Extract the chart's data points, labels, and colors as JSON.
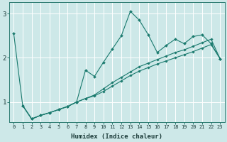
{
  "xlabel": "Humidex (Indice chaleur)",
  "background_color": "#cde8e8",
  "grid_color": "#ffffff",
  "line_color": "#1a7a6e",
  "xlim": [
    -0.5,
    23.5
  ],
  "ylim": [
    0.55,
    3.25
  ],
  "yticks": [
    1,
    2,
    3
  ],
  "xticks": [
    0,
    1,
    2,
    3,
    4,
    5,
    6,
    7,
    8,
    9,
    10,
    11,
    12,
    13,
    14,
    15,
    16,
    17,
    18,
    19,
    20,
    21,
    22,
    23
  ],
  "series": [
    {
      "x": [
        0,
        1,
        2,
        3,
        4,
        5,
        6,
        7,
        8,
        9,
        10,
        11,
        12,
        13,
        14,
        15,
        16,
        17,
        18,
        19,
        20,
        21,
        22,
        23
      ],
      "y": [
        2.55,
        0.92,
        0.62,
        0.7,
        0.76,
        0.83,
        0.9,
        1.0,
        1.72,
        1.58,
        1.9,
        2.2,
        2.5,
        3.05,
        2.85,
        2.52,
        2.12,
        2.28,
        2.42,
        2.32,
        2.48,
        2.52,
        2.32,
        1.98
      ]
    },
    {
      "x": [
        1,
        2,
        3,
        4,
        5,
        6,
        7,
        8,
        9,
        10,
        11,
        12,
        13,
        14,
        15,
        16,
        17,
        18,
        19,
        20,
        21,
        22,
        23
      ],
      "y": [
        0.92,
        0.62,
        0.7,
        0.76,
        0.83,
        0.9,
        1.0,
        1.08,
        1.16,
        1.3,
        1.44,
        1.56,
        1.68,
        1.8,
        1.88,
        1.96,
        2.04,
        2.12,
        2.18,
        2.26,
        2.34,
        2.42,
        1.98
      ]
    },
    {
      "x": [
        1,
        2,
        3,
        4,
        5,
        6,
        7,
        8,
        9,
        10,
        11,
        12,
        13,
        14,
        15,
        16,
        17,
        18,
        19,
        20,
        21,
        22,
        23
      ],
      "y": [
        0.92,
        0.62,
        0.7,
        0.76,
        0.83,
        0.9,
        1.0,
        1.08,
        1.14,
        1.24,
        1.36,
        1.48,
        1.6,
        1.7,
        1.78,
        1.86,
        1.93,
        2.0,
        2.07,
        2.14,
        2.22,
        2.3,
        1.98
      ]
    }
  ],
  "xlabel_fontsize": 6.5,
  "xtick_fontsize": 5.0,
  "ytick_fontsize": 6.5
}
